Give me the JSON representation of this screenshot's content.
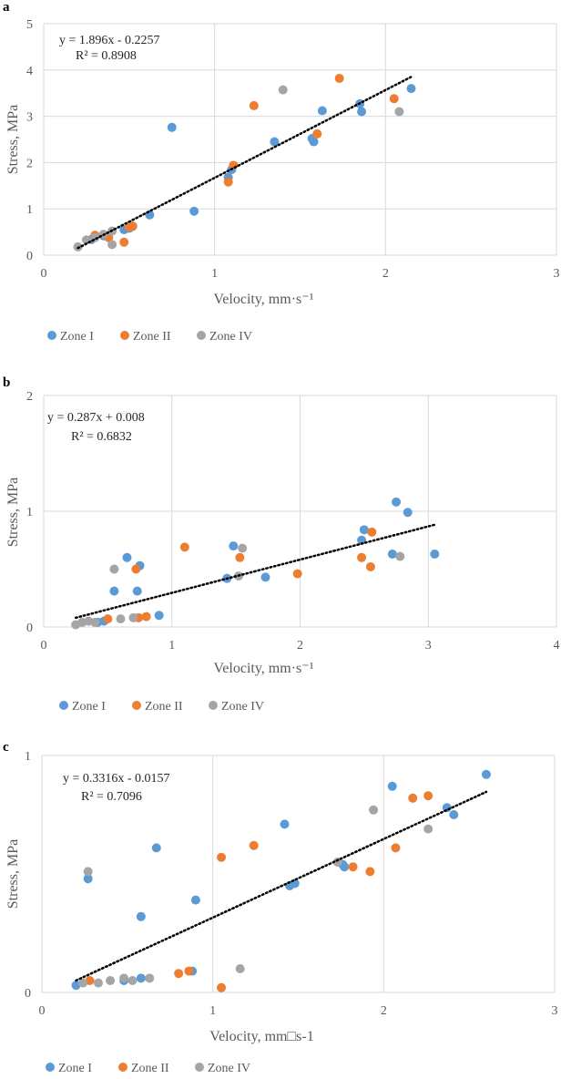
{
  "colors": {
    "zone1": "#5B9BD5",
    "zone2": "#ED7D31",
    "zone4": "#A5A5A5",
    "grid": "#D9D9D9",
    "trend": "#000000"
  },
  "chart_data": [
    {
      "panel": "a",
      "type": "scatter",
      "xlabel": "Velocity, mm·s⁻¹",
      "ylabel": "Stress, MPa",
      "xlim": [
        0,
        3
      ],
      "ylim": [
        0,
        5
      ],
      "xticks": [
        0,
        1,
        2,
        3
      ],
      "yticks": [
        0,
        1,
        2,
        3,
        4,
        5
      ],
      "grid": true,
      "equation": "y = 1.896x - 0.2257",
      "r2": "R² = 0.8908",
      "trend": {
        "slope": 1.896,
        "intercept": -0.2257,
        "x_range": [
          0.2,
          2.15
        ]
      },
      "legend": [
        "Zone I",
        "Zone II",
        "Zone IV"
      ],
      "series": [
        {
          "name": "Zone I",
          "points": [
            [
              0.75,
              2.76
            ],
            [
              0.88,
              0.95
            ],
            [
              0.62,
              0.87
            ],
            [
              0.52,
              0.62
            ],
            [
              0.5,
              0.58
            ],
            [
              0.47,
              0.55
            ],
            [
              0.35,
              0.42
            ],
            [
              0.28,
              0.34
            ],
            [
              1.08,
              1.68
            ],
            [
              1.1,
              1.85
            ],
            [
              1.35,
              2.45
            ],
            [
              1.57,
              2.52
            ],
            [
              1.58,
              2.45
            ],
            [
              1.63,
              3.12
            ],
            [
              1.85,
              3.27
            ],
            [
              1.86,
              3.1
            ],
            [
              2.15,
              3.6
            ]
          ]
        },
        {
          "name": "Zone II",
          "points": [
            [
              0.3,
              0.43
            ],
            [
              0.38,
              0.38
            ],
            [
              0.47,
              0.28
            ],
            [
              0.5,
              0.6
            ],
            [
              0.52,
              0.63
            ],
            [
              1.08,
              1.58
            ],
            [
              1.11,
              1.94
            ],
            [
              1.23,
              3.23
            ],
            [
              1.6,
              2.62
            ],
            [
              1.73,
              3.82
            ],
            [
              2.05,
              3.38
            ]
          ]
        },
        {
          "name": "Zone IV",
          "points": [
            [
              0.2,
              0.18
            ],
            [
              0.25,
              0.33
            ],
            [
              0.3,
              0.38
            ],
            [
              0.35,
              0.45
            ],
            [
              0.4,
              0.23
            ],
            [
              0.4,
              0.52
            ],
            [
              1.4,
              3.57
            ],
            [
              2.08,
              3.1
            ]
          ]
        }
      ]
    },
    {
      "panel": "b",
      "type": "scatter",
      "xlabel": "Velocity, mm·s⁻¹",
      "ylabel": "Stress, MPa",
      "xlim": [
        0,
        4
      ],
      "ylim": [
        0,
        2
      ],
      "xticks": [
        0,
        1,
        2,
        3,
        4
      ],
      "yticks": [
        0,
        1,
        2
      ],
      "grid": true,
      "equation": "y = 0.287x + 0.008",
      "r2": "R² = 0.6832",
      "trend": {
        "slope": 0.287,
        "intercept": 0.008,
        "x_range": [
          0.25,
          3.05
        ]
      },
      "legend": [
        "Zone I",
        "Zone II",
        "Zone IV"
      ],
      "series": [
        {
          "name": "Zone I",
          "points": [
            [
              0.55,
              0.31
            ],
            [
              0.65,
              0.6
            ],
            [
              0.73,
              0.31
            ],
            [
              0.75,
              0.53
            ],
            [
              0.42,
              0.04
            ],
            [
              0.47,
              0.05
            ],
            [
              0.9,
              0.1
            ],
            [
              1.43,
              0.42
            ],
            [
              1.48,
              0.7
            ],
            [
              1.73,
              0.43
            ],
            [
              2.48,
              0.75
            ],
            [
              2.5,
              0.84
            ],
            [
              2.72,
              0.63
            ],
            [
              2.75,
              1.08
            ],
            [
              2.84,
              0.99
            ],
            [
              3.05,
              0.63
            ]
          ]
        },
        {
          "name": "Zone II",
          "points": [
            [
              0.5,
              0.07
            ],
            [
              0.72,
              0.5
            ],
            [
              0.74,
              0.08
            ],
            [
              0.8,
              0.09
            ],
            [
              1.1,
              0.69
            ],
            [
              1.53,
              0.6
            ],
            [
              1.98,
              0.46
            ],
            [
              2.48,
              0.6
            ],
            [
              2.55,
              0.52
            ],
            [
              2.56,
              0.82
            ]
          ]
        },
        {
          "name": "Zone IV",
          "points": [
            [
              0.25,
              0.02
            ],
            [
              0.3,
              0.04
            ],
            [
              0.35,
              0.05
            ],
            [
              0.4,
              0.04
            ],
            [
              0.55,
              0.5
            ],
            [
              0.6,
              0.07
            ],
            [
              0.7,
              0.08
            ],
            [
              1.52,
              0.44
            ],
            [
              1.55,
              0.68
            ],
            [
              2.78,
              0.61
            ]
          ]
        }
      ]
    },
    {
      "panel": "c",
      "type": "scatter",
      "xlabel": "Velocity, mm□s-1",
      "ylabel": "Stress, MPa",
      "xlim": [
        0,
        3
      ],
      "ylim": [
        0,
        1
      ],
      "xticks": [
        0,
        1,
        2,
        3
      ],
      "yticks": [
        0,
        1
      ],
      "grid": true,
      "equation": "y = 0.3316x - 0.0157",
      "r2": "R² = 0.7096",
      "trend": {
        "slope": 0.3316,
        "intercept": -0.0157,
        "x_range": [
          0.2,
          2.6
        ]
      },
      "legend": [
        "Zone I",
        "Zone II",
        "Zone IV"
      ],
      "series": [
        {
          "name": "Zone I",
          "points": [
            [
              0.2,
              0.03
            ],
            [
              0.27,
              0.48
            ],
            [
              0.48,
              0.05
            ],
            [
              0.58,
              0.06
            ],
            [
              0.58,
              0.32
            ],
            [
              0.67,
              0.61
            ],
            [
              0.88,
              0.09
            ],
            [
              0.9,
              0.39
            ],
            [
              1.42,
              0.71
            ],
            [
              1.45,
              0.45
            ],
            [
              1.48,
              0.46
            ],
            [
              1.76,
              0.54
            ],
            [
              1.77,
              0.53
            ],
            [
              2.05,
              0.87
            ],
            [
              2.37,
              0.78
            ],
            [
              2.41,
              0.75
            ],
            [
              2.6,
              0.92
            ]
          ]
        },
        {
          "name": "Zone II",
          "points": [
            [
              0.28,
              0.05
            ],
            [
              0.8,
              0.08
            ],
            [
              0.86,
              0.09
            ],
            [
              1.05,
              0.02
            ],
            [
              1.05,
              0.57
            ],
            [
              1.24,
              0.62
            ],
            [
              1.82,
              0.53
            ],
            [
              1.92,
              0.51
            ],
            [
              2.07,
              0.61
            ],
            [
              2.17,
              0.82
            ],
            [
              2.26,
              0.83
            ]
          ]
        },
        {
          "name": "Zone IV",
          "points": [
            [
              0.24,
              0.04
            ],
            [
              0.27,
              0.51
            ],
            [
              0.33,
              0.04
            ],
            [
              0.4,
              0.05
            ],
            [
              0.48,
              0.06
            ],
            [
              0.53,
              0.05
            ],
            [
              0.63,
              0.06
            ],
            [
              1.16,
              0.1
            ],
            [
              1.73,
              0.55
            ],
            [
              1.94,
              0.77
            ],
            [
              2.26,
              0.69
            ]
          ]
        }
      ]
    }
  ]
}
